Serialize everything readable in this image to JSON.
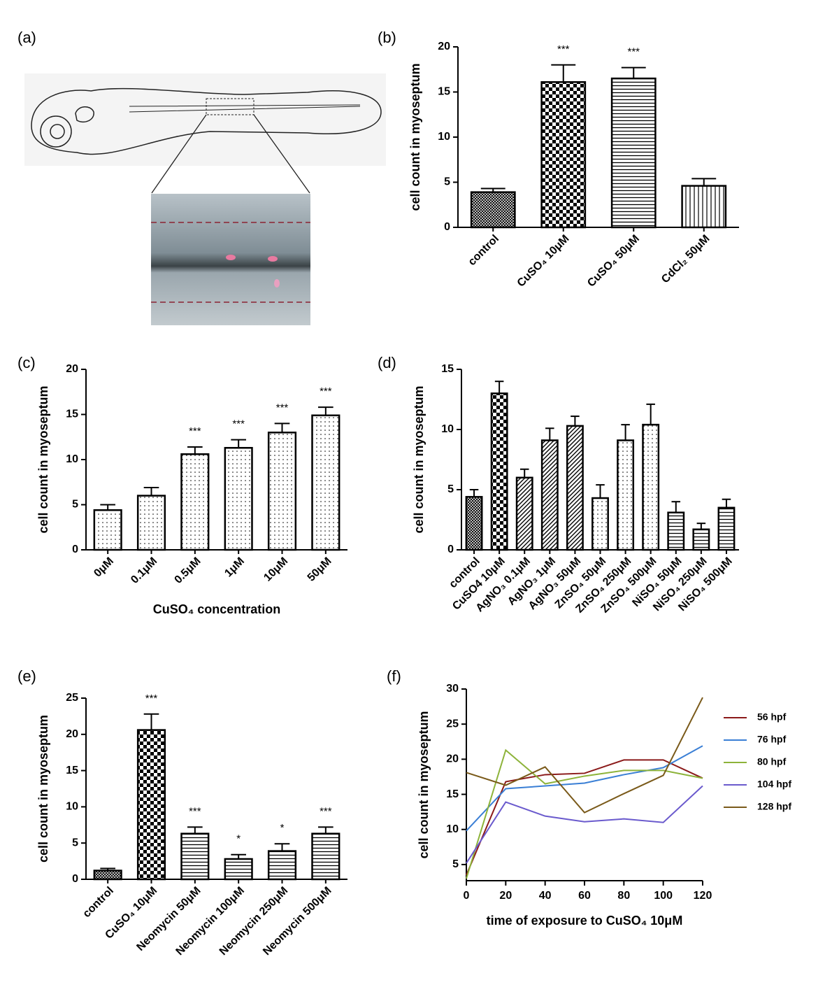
{
  "chart_data": [
    {
      "type": "illustration",
      "label": "(a)"
    },
    {
      "type": "bar",
      "label": "(b)",
      "ylabel": "cell count in myoseptum",
      "categories": [
        "control",
        "CuSO₄ 10μM",
        "CuSO₄ 50μM",
        "CdCl₂ 50μM"
      ],
      "values": [
        3.9,
        16.1,
        16.5,
        4.6
      ],
      "errors": [
        0.4,
        1.9,
        1.2,
        0.8
      ],
      "annotations": [
        null,
        "***",
        "***",
        null
      ],
      "patterns": [
        "crosshatch",
        "checker",
        "hlines",
        "vlines"
      ],
      "color": "#000000",
      "ylim": [
        0,
        20
      ],
      "yticks": [
        0,
        5,
        10,
        15,
        20
      ]
    },
    {
      "type": "bar",
      "label": "(c)",
      "ylabel": "cell count in myoseptum",
      "xlabel": "CuSO₄ concentration",
      "categories": [
        "0μM",
        "0.1μM",
        "0.5μM",
        "1μM",
        "10μM",
        "50μM"
      ],
      "values": [
        4.4,
        6.0,
        10.6,
        11.3,
        13.0,
        14.9
      ],
      "errors": [
        0.6,
        0.9,
        0.8,
        0.9,
        1.0,
        0.9
      ],
      "annotations": [
        null,
        null,
        "***",
        "***",
        "***",
        "***"
      ],
      "patterns": [
        "dots",
        "dots",
        "dots",
        "dots",
        "dots",
        "dots"
      ],
      "color": "#000000",
      "ylim": [
        0,
        20
      ],
      "yticks": [
        0,
        5,
        10,
        15,
        20
      ]
    },
    {
      "type": "bar",
      "label": "(d)",
      "ylabel": "cell count in myoseptum",
      "categories": [
        "control",
        "CuSO4 10μM",
        "AgNO₃ 0.1μM",
        "AgNO₃ 1μM",
        "AgNO₃ 50μM",
        "ZnSO₄ 50μM",
        "ZnSO₄ 250μM",
        "ZnSO₄ 500μM",
        "NiSO₄ 50μM",
        "NiSO₄ 250μM",
        "NiSO₄ 500μM"
      ],
      "values": [
        4.4,
        13.0,
        6.0,
        9.1,
        10.3,
        4.3,
        9.1,
        10.4,
        3.1,
        1.7,
        3.5
      ],
      "errors": [
        0.6,
        1.0,
        0.7,
        1.0,
        0.8,
        1.1,
        1.3,
        1.7,
        0.9,
        0.5,
        0.7
      ],
      "patterns": [
        "crosshatch",
        "checker",
        "diag",
        "diag",
        "diag",
        "dots",
        "dots",
        "dots",
        "hlines",
        "hlines",
        "hlines"
      ],
      "color": "#000000",
      "ylim": [
        0,
        15
      ],
      "yticks": [
        0,
        5,
        10,
        15
      ]
    },
    {
      "type": "bar",
      "label": "(e)",
      "ylabel": "cell count in myoseptum",
      "categories": [
        "control",
        "CuSO₄ 10μM",
        "Neomycin 50μM",
        "Neomycin 100μM",
        "Neomycin 250μM",
        "Neomycin 500μM"
      ],
      "values": [
        1.2,
        20.6,
        6.3,
        2.8,
        3.9,
        6.3
      ],
      "errors": [
        0.3,
        2.2,
        0.9,
        0.6,
        1.0,
        0.9
      ],
      "annotations": [
        null,
        "***",
        "***",
        "*",
        "*",
        "***"
      ],
      "patterns": [
        "crosshatch",
        "checker",
        "hlines",
        "hlines",
        "hlines",
        "hlines"
      ],
      "color": "#000000",
      "ylim": [
        0,
        25
      ],
      "yticks": [
        0,
        5,
        10,
        15,
        20,
        25
      ]
    },
    {
      "type": "line",
      "label": "(f)",
      "ylabel": "cell count in myoseptum",
      "xlabel": "time of exposure to CuSO₄ 10μM",
      "x": [
        0,
        20,
        40,
        60,
        80,
        100,
        120
      ],
      "series": [
        {
          "name": "56 hpf",
          "color": "#8b1a1a",
          "values": [
            3.5,
            16.8,
            17.8,
            18.0,
            19.9,
            19.9,
            17.3
          ]
        },
        {
          "name": "76 hpf",
          "color": "#3a7fd5",
          "values": [
            9.8,
            15.8,
            16.2,
            16.6,
            17.8,
            18.8,
            21.9
          ]
        },
        {
          "name": "80 hpf",
          "color": "#8db33a",
          "values": [
            3.0,
            21.3,
            16.5,
            17.6,
            18.4,
            18.4,
            17.3
          ]
        },
        {
          "name": "104 hpf",
          "color": "#6a5acd",
          "values": [
            5.2,
            13.9,
            11.9,
            11.1,
            11.5,
            11.0,
            16.2
          ]
        },
        {
          "name": "128 hpf",
          "color": "#7a5a1a",
          "values": [
            18.1,
            16.3,
            18.9,
            12.4,
            15.1,
            17.7,
            28.8
          ]
        }
      ],
      "xlim": [
        0,
        120
      ],
      "xticks": [
        0,
        20,
        40,
        60,
        80,
        100,
        120
      ],
      "ylim": [
        2.7,
        30
      ],
      "yticks": [
        5,
        10,
        15,
        20,
        25,
        30
      ],
      "legend": "right"
    }
  ]
}
